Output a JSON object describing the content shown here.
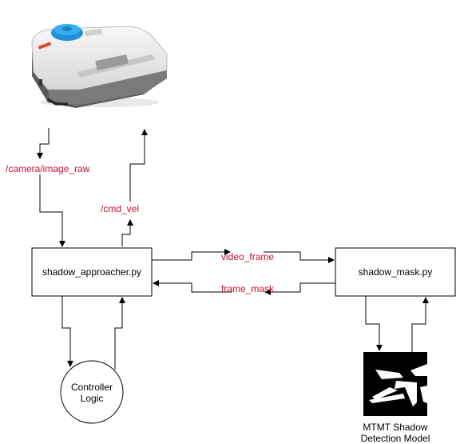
{
  "robot": {
    "icon": "robot-vacuum-icon"
  },
  "topics": {
    "camera": "/camera/image_raw",
    "cmd_vel": "/cmd_vel",
    "video_frame": "video_frame",
    "frame_mask": "frame_mask"
  },
  "nodes": {
    "approacher": "shadow_approacher.py",
    "mask": "shadow_mask.py",
    "controller_line1": "Controller",
    "controller_line2": "Logic"
  },
  "model": {
    "line1": "MTMT Shadow",
    "line2": "Detection Model",
    "icon": "shadow-mask-icon"
  },
  "colors": {
    "topic": "#c8102e",
    "line": "#000000",
    "box_fill": "#ffffff"
  }
}
